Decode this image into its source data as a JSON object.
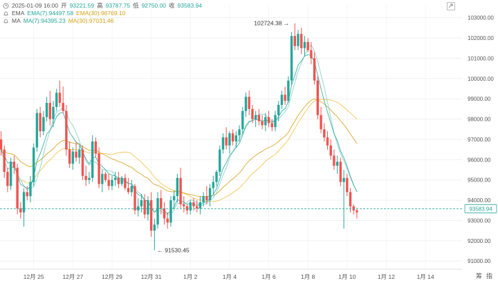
{
  "info": {
    "datetime": "2025-01-09 16:00",
    "open_label": "开",
    "open": "93221.59",
    "high_label": "高",
    "high": "93787.75",
    "low_label": "低",
    "low": "92750.00",
    "close_label": "收",
    "close": "93583.94",
    "ema_label": "EMA",
    "ema7": "EMA(7):94497.58",
    "ema30": "EMA(30):96769.10",
    "ma_label": "MA",
    "ma7": "MA(7):94395.23",
    "ma30": "MA(30):97031.46"
  },
  "footer": {
    "label1": "筹",
    "label2": "指"
  },
  "colors": {
    "up": "#26a69a",
    "down": "#ef5350",
    "ema7": "#26a69a",
    "ema30": "#d4a017",
    "ma7": "#80cbc4",
    "ma30": "#f0c040",
    "current": "#26a69a"
  },
  "chart_data": {
    "type": "candlestick",
    "y_ticks": [
      "103000.00",
      "102000.00",
      "101000.00",
      "100000.00",
      "99000.00",
      "98000.00",
      "97000.00",
      "96000.00",
      "95000.00",
      "94000.00",
      "93000.00",
      "92000.00",
      "91000.00"
    ],
    "y_values": [
      103000,
      102000,
      101000,
      100000,
      99000,
      98000,
      97000,
      96000,
      95000,
      94000,
      93000,
      92000,
      91000
    ],
    "ylim": [
      90600,
      103600
    ],
    "x_ticks": [
      "12月 25",
      "12月 27",
      "12月 29",
      "12月 31",
      "1月 2",
      "1月 4",
      "1月 6",
      "1月 8",
      "1月 10",
      "1月 12",
      "1月 14"
    ],
    "x_tick_index": [
      10,
      22,
      34,
      46,
      58,
      70,
      82,
      94,
      106,
      118,
      130
    ],
    "current_price": "93583.94",
    "current_value": 93583.94,
    "high_marker": "102724.38",
    "high_value": 102724.38,
    "high_index": 90,
    "low_marker": "91530.45",
    "low_value": 91530.45,
    "low_index": 47,
    "candles": [
      [
        97000,
        97400,
        96200,
        96500
      ],
      [
        96500,
        96700,
        95100,
        95400
      ],
      [
        95400,
        95600,
        94400,
        94700
      ],
      [
        94700,
        96100,
        94500,
        95900
      ],
      [
        95900,
        96200,
        95300,
        95600
      ],
      [
        95600,
        95800,
        93300,
        93600
      ],
      [
        93600,
        93900,
        93100,
        93400
      ],
      [
        93400,
        94600,
        92700,
        94400
      ],
      [
        94400,
        94700,
        94000,
        94200
      ],
      [
        94200,
        95200,
        93900,
        94900
      ],
      [
        94900,
        96800,
        94700,
        96600
      ],
      [
        96600,
        98500,
        96400,
        98300
      ],
      [
        98300,
        98600,
        97100,
        97400
      ],
      [
        97400,
        98400,
        97200,
        98100
      ],
      [
        98100,
        99100,
        97900,
        98800
      ],
      [
        98800,
        99400,
        97700,
        98000
      ],
      [
        98000,
        98900,
        97600,
        98600
      ],
      [
        98600,
        99500,
        98400,
        99300
      ],
      [
        99300,
        99900,
        98600,
        98800
      ],
      [
        98800,
        99600,
        98300,
        98400
      ],
      [
        98400,
        98700,
        96200,
        96500
      ],
      [
        96500,
        96900,
        95600,
        95800
      ],
      [
        95800,
        96600,
        95500,
        96400
      ],
      [
        96400,
        96900,
        95900,
        96100
      ],
      [
        96100,
        96700,
        95800,
        96500
      ],
      [
        96500,
        96700,
        95000,
        95200
      ],
      [
        95200,
        95700,
        94700,
        95000
      ],
      [
        95000,
        95400,
        94800,
        95100
      ],
      [
        95100,
        97200,
        94900,
        96900
      ],
      [
        96900,
        97100,
        96100,
        96300
      ],
      [
        96300,
        96600,
        94600,
        94800
      ],
      [
        94800,
        95500,
        94400,
        95300
      ],
      [
        95300,
        95400,
        94900,
        95000
      ],
      [
        95000,
        95300,
        94500,
        94700
      ],
      [
        94700,
        95200,
        94500,
        95000
      ],
      [
        95000,
        95400,
        94700,
        95100
      ],
      [
        95100,
        95400,
        94600,
        94800
      ],
      [
        94800,
        95200,
        94700,
        95100
      ],
      [
        95100,
        95300,
        94500,
        94600
      ],
      [
        94600,
        95100,
        94300,
        94400
      ],
      [
        94400,
        95000,
        94200,
        94700
      ],
      [
        94700,
        94800,
        93300,
        93500
      ],
      [
        93500,
        94100,
        93200,
        93700
      ],
      [
        93700,
        94300,
        93400,
        94000
      ],
      [
        94000,
        94300,
        93100,
        93300
      ],
      [
        93300,
        94200,
        93000,
        94000
      ],
      [
        94000,
        94400,
        92200,
        92500
      ],
      [
        92500,
        93100,
        91530,
        92800
      ],
      [
        92800,
        94400,
        92600,
        94100
      ],
      [
        94100,
        94500,
        93300,
        93600
      ],
      [
        93600,
        93900,
        92800,
        93100
      ],
      [
        93100,
        93400,
        92600,
        92900
      ],
      [
        92900,
        94200,
        92700,
        94000
      ],
      [
        94000,
        94500,
        93600,
        94200
      ],
      [
        94200,
        95300,
        93900,
        95100
      ],
      [
        95100,
        95600,
        93600,
        93800
      ],
      [
        93800,
        94200,
        93400,
        93700
      ],
      [
        93700,
        93800,
        93300,
        93500
      ],
      [
        93500,
        94000,
        93300,
        93900
      ],
      [
        93900,
        94100,
        93500,
        93700
      ],
      [
        93700,
        94000,
        93400,
        93600
      ],
      [
        93600,
        94200,
        93300,
        93900
      ],
      [
        93900,
        94400,
        93700,
        94200
      ],
      [
        94200,
        94700,
        93800,
        94000
      ],
      [
        94000,
        94800,
        93700,
        94600
      ],
      [
        94600,
        95200,
        94300,
        94900
      ],
      [
        94900,
        95500,
        94700,
        95400
      ],
      [
        95400,
        96700,
        95200,
        96500
      ],
      [
        96500,
        97300,
        96300,
        97100
      ],
      [
        97100,
        97600,
        96500,
        96700
      ],
      [
        96700,
        97400,
        96300,
        97300
      ],
      [
        97300,
        97500,
        96700,
        96900
      ],
      [
        96900,
        97400,
        96600,
        97200
      ],
      [
        97200,
        97700,
        96900,
        97500
      ],
      [
        97500,
        98600,
        97300,
        98400
      ],
      [
        98400,
        99300,
        98100,
        99100
      ],
      [
        99100,
        99400,
        98200,
        98500
      ],
      [
        98500,
        98700,
        97800,
        98000
      ],
      [
        98000,
        98400,
        97600,
        98200
      ],
      [
        98200,
        98500,
        97700,
        97900
      ],
      [
        97900,
        98200,
        97500,
        97700
      ],
      [
        97700,
        98300,
        97400,
        98100
      ],
      [
        98100,
        98400,
        97600,
        97800
      ],
      [
        97800,
        98000,
        97400,
        97600
      ],
      [
        97600,
        98400,
        97400,
        98200
      ],
      [
        98200,
        98900,
        97900,
        98700
      ],
      [
        98700,
        99400,
        98500,
        99200
      ],
      [
        99200,
        99600,
        98700,
        98900
      ],
      [
        98900,
        100100,
        98800,
        99900
      ],
      [
        99900,
        102300,
        99700,
        102100
      ],
      [
        102100,
        102724,
        101400,
        101600
      ],
      [
        101600,
        102400,
        101400,
        102200
      ],
      [
        102200,
        102500,
        101200,
        101500
      ],
      [
        101500,
        102100,
        101100,
        101800
      ],
      [
        101800,
        102000,
        101300,
        101400
      ],
      [
        101400,
        101800,
        100700,
        101000
      ],
      [
        101000,
        101300,
        99700,
        99900
      ],
      [
        99900,
        100100,
        98000,
        98200
      ],
      [
        98200,
        98600,
        97300,
        97500
      ],
      [
        97500,
        97800,
        96900,
        97100
      ],
      [
        97100,
        97400,
        96500,
        96700
      ],
      [
        96700,
        97000,
        96000,
        96200
      ],
      [
        96200,
        96500,
        95500,
        95700
      ],
      [
        95700,
        96200,
        95300,
        95900
      ],
      [
        95900,
        96100,
        94700,
        94900
      ],
      [
        94900,
        95500,
        92600,
        95100
      ],
      [
        95100,
        95300,
        94200,
        94400
      ],
      [
        94400,
        94600,
        93400,
        93700
      ],
      [
        93700,
        93800,
        93300,
        93500
      ],
      [
        93500,
        93600,
        93100,
        93400
      ]
    ]
  }
}
